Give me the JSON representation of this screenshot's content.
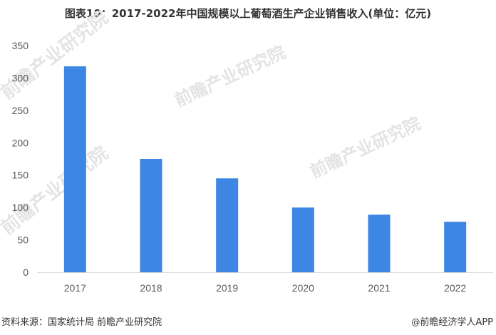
{
  "header": {
    "title": "图表10：2017-2022年中国规模以上葡萄酒生产企业销售收入(单位：亿元)"
  },
  "footer": {
    "source": "资料来源：国家统计局 前瞻产业研究院",
    "brand": "前瞻经济学人APP",
    "brand_icon": "at-icon"
  },
  "watermark": {
    "text": "前瞻产业研究院"
  },
  "colors": {
    "bar": "#3d86e4",
    "axis": "#d9d9d9",
    "text": "#595959"
  },
  "chart_data": {
    "type": "bar",
    "title": "图表10：2017-2022年中国规模以上葡萄酒生产企业销售收入(单位：亿元)",
    "categories": [
      "2017",
      "2018",
      "2019",
      "2020",
      "2021",
      "2022"
    ],
    "values": [
      318,
      175,
      145,
      100,
      89,
      78
    ],
    "ylim": [
      0,
      350
    ],
    "yticks": [
      0,
      50,
      100,
      150,
      200,
      250,
      300,
      350
    ],
    "xlabel": "",
    "ylabel": "",
    "grid": false,
    "legend": "none"
  }
}
